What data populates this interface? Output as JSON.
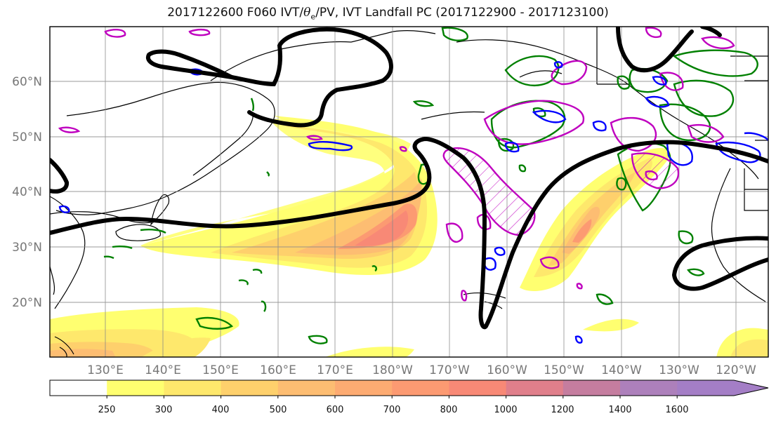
{
  "title": {
    "prefix": "2017122600 F060 IVT/",
    "theta": "θ",
    "theta_sub": "e",
    "suffix": "/PV, IVT Landfall PC (2017122900 - 2017123100)"
  },
  "map": {
    "lat_labels": [
      "60°N",
      "50°N",
      "40°N",
      "30°N",
      "20°N"
    ],
    "lon_labels": [
      "130°E",
      "140°E",
      "150°E",
      "160°E",
      "170°E",
      "180°W",
      "170°W",
      "160°W",
      "150°W",
      "140°W",
      "130°W",
      "120°W"
    ]
  },
  "colorbar": {
    "ticks": [
      "250",
      "300",
      "400",
      "500",
      "600",
      "700",
      "800",
      "1000",
      "1200",
      "1400",
      "1600"
    ],
    "colors": [
      "#ffffff",
      "#ffff70",
      "#fee86c",
      "#fed06c",
      "#fdbd72",
      "#fdab72",
      "#fc9a72",
      "#f88976",
      "#e07f8b",
      "#c57d9f",
      "#ad80bb",
      "#a47ec6"
    ]
  },
  "contour_colors": {
    "pv_thick": "#000000",
    "theta_e": "#008000",
    "pc_positive": "#bf00bf",
    "pc_negative": "#0000ff"
  }
}
